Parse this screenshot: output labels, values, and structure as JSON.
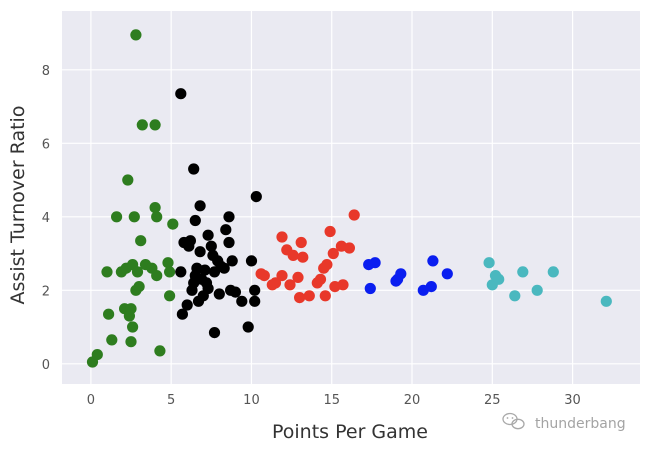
{
  "chart_data": {
    "type": "scatter",
    "title": "",
    "xlabel": "Points Per Game",
    "ylabel": "Assist Turnover Ratio",
    "xlim": [
      -1.8,
      34.2
    ],
    "ylim": [
      -0.55,
      9.6
    ],
    "xticks": [
      0,
      5,
      10,
      15,
      20,
      25,
      30
    ],
    "yticks": [
      0,
      2,
      4,
      6,
      8
    ],
    "grid": true,
    "style": "seaborn-darkgrid",
    "colors": {
      "background": "#eaeaf2",
      "grid": "#ffffff",
      "green": "#2e7d1f",
      "black": "#000000",
      "red": "#e8382a",
      "blue": "#0a1ef0",
      "cyan": "#4ab8bf"
    },
    "series": [
      {
        "color": "green",
        "points": [
          [
            0.1,
            0.05
          ],
          [
            0.4,
            0.25
          ],
          [
            1.1,
            1.35
          ],
          [
            1.0,
            2.5
          ],
          [
            1.3,
            0.65
          ],
          [
            1.6,
            4.0
          ],
          [
            1.9,
            2.5
          ],
          [
            2.1,
            1.5
          ],
          [
            2.2,
            2.6
          ],
          [
            2.3,
            5.0
          ],
          [
            2.4,
            1.3
          ],
          [
            2.5,
            1.5
          ],
          [
            2.5,
            0.6
          ],
          [
            2.6,
            2.7
          ],
          [
            2.6,
            1.0
          ],
          [
            2.7,
            4.0
          ],
          [
            2.8,
            2.0
          ],
          [
            2.8,
            8.95
          ],
          [
            2.9,
            2.5
          ],
          [
            3.0,
            2.1
          ],
          [
            3.1,
            3.35
          ],
          [
            3.2,
            6.5
          ],
          [
            3.4,
            2.7
          ],
          [
            3.8,
            2.6
          ],
          [
            4.0,
            4.25
          ],
          [
            4.0,
            6.5
          ],
          [
            4.1,
            2.4
          ],
          [
            4.1,
            4.0
          ],
          [
            4.3,
            0.35
          ],
          [
            4.8,
            2.75
          ],
          [
            4.9,
            2.5
          ],
          [
            4.9,
            1.85
          ],
          [
            5.1,
            3.8
          ]
        ]
      },
      {
        "color": "black",
        "points": [
          [
            5.6,
            7.35
          ],
          [
            5.6,
            2.5
          ],
          [
            5.7,
            1.35
          ],
          [
            5.8,
            3.3
          ],
          [
            6.0,
            1.6
          ],
          [
            6.1,
            3.2
          ],
          [
            6.2,
            3.35
          ],
          [
            6.3,
            2.0
          ],
          [
            6.4,
            5.3
          ],
          [
            6.4,
            2.2
          ],
          [
            6.5,
            3.9
          ],
          [
            6.5,
            2.4
          ],
          [
            6.6,
            2.6
          ],
          [
            6.7,
            1.7
          ],
          [
            6.8,
            4.3
          ],
          [
            6.8,
            3.05
          ],
          [
            6.9,
            2.3
          ],
          [
            7.0,
            1.85
          ],
          [
            7.1,
            2.55
          ],
          [
            7.2,
            2.2
          ],
          [
            7.3,
            3.5
          ],
          [
            7.3,
            2.05
          ],
          [
            7.5,
            3.2
          ],
          [
            7.6,
            2.95
          ],
          [
            7.7,
            0.85
          ],
          [
            7.7,
            2.5
          ],
          [
            7.9,
            2.8
          ],
          [
            8.0,
            1.9
          ],
          [
            8.1,
            2.65
          ],
          [
            8.3,
            2.6
          ],
          [
            8.4,
            3.65
          ],
          [
            8.6,
            4.0
          ],
          [
            8.6,
            3.3
          ],
          [
            8.7,
            2.0
          ],
          [
            8.8,
            2.8
          ],
          [
            9.0,
            1.95
          ],
          [
            9.4,
            1.7
          ],
          [
            9.8,
            1.0
          ],
          [
            10.0,
            2.8
          ],
          [
            10.2,
            1.7
          ],
          [
            10.2,
            2.0
          ],
          [
            10.3,
            4.55
          ]
        ]
      },
      {
        "color": "red",
        "points": [
          [
            10.6,
            2.45
          ],
          [
            10.8,
            2.4
          ],
          [
            11.3,
            2.15
          ],
          [
            11.5,
            2.2
          ],
          [
            11.9,
            3.45
          ],
          [
            11.9,
            2.4
          ],
          [
            12.2,
            3.1
          ],
          [
            12.4,
            2.15
          ],
          [
            12.6,
            2.95
          ],
          [
            12.9,
            2.35
          ],
          [
            13.0,
            1.8
          ],
          [
            13.1,
            3.3
          ],
          [
            13.2,
            2.9
          ],
          [
            13.6,
            1.85
          ],
          [
            14.1,
            2.2
          ],
          [
            14.3,
            2.3
          ],
          [
            14.5,
            2.6
          ],
          [
            14.6,
            1.85
          ],
          [
            14.7,
            2.7
          ],
          [
            14.9,
            3.6
          ],
          [
            15.1,
            3.0
          ],
          [
            15.2,
            2.1
          ],
          [
            15.6,
            3.2
          ],
          [
            15.7,
            2.15
          ],
          [
            16.1,
            3.15
          ],
          [
            16.4,
            4.05
          ]
        ]
      },
      {
        "color": "blue",
        "points": [
          [
            17.3,
            2.7
          ],
          [
            17.4,
            2.05
          ],
          [
            17.7,
            2.75
          ],
          [
            19.0,
            2.25
          ],
          [
            19.1,
            2.3
          ],
          [
            19.3,
            2.45
          ],
          [
            20.7,
            2.0
          ],
          [
            21.2,
            2.1
          ],
          [
            21.3,
            2.8
          ],
          [
            22.2,
            2.45
          ]
        ]
      },
      {
        "color": "cyan",
        "points": [
          [
            24.8,
            2.75
          ],
          [
            25.0,
            2.15
          ],
          [
            25.2,
            2.4
          ],
          [
            25.4,
            2.3
          ],
          [
            26.4,
            1.85
          ],
          [
            26.9,
            2.5
          ],
          [
            27.8,
            2.0
          ],
          [
            28.8,
            2.5
          ],
          [
            32.1,
            1.7
          ]
        ]
      }
    ]
  },
  "watermark": {
    "icon": "wechat-icon",
    "text": "thunderbang"
  }
}
